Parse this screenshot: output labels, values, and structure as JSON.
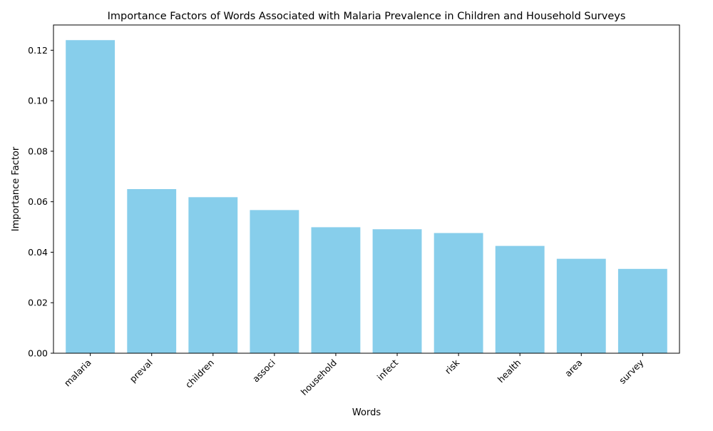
{
  "chart_data": {
    "type": "bar",
    "title": "Importance Factors of Words Associated with Malaria Prevalence in Children and Household Surveys",
    "xlabel": "Words",
    "ylabel": "Importance Factor",
    "categories": [
      "malaria",
      "preval",
      "children",
      "associ",
      "household",
      "infect",
      "risk",
      "health",
      "area",
      "survey"
    ],
    "values": [
      0.124,
      0.065,
      0.0618,
      0.0567,
      0.0499,
      0.0491,
      0.0476,
      0.0425,
      0.0374,
      0.0334
    ],
    "ylim": [
      0,
      0.13
    ],
    "yticks": [
      "0.00",
      "0.02",
      "0.04",
      "0.06",
      "0.08",
      "0.10",
      "0.12"
    ],
    "bar_color": "#87CEEB",
    "grid": false,
    "legend": "none"
  }
}
